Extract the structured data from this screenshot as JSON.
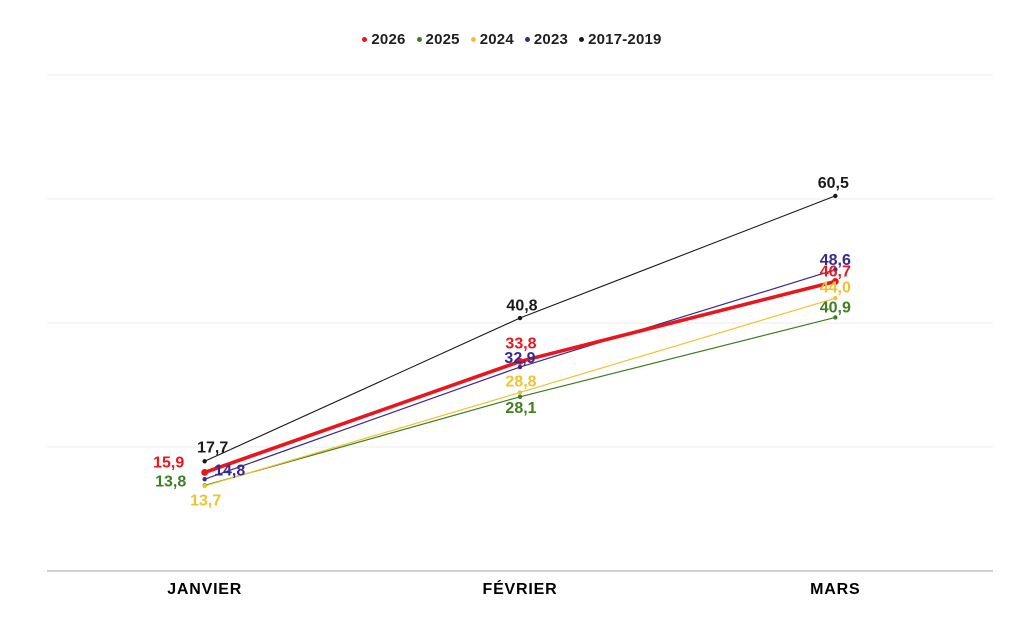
{
  "legend": {
    "order": [
      "2026",
      "2025",
      "2024",
      "2023",
      "2017-2019"
    ]
  },
  "chart_data": {
    "type": "line",
    "title": "",
    "categories": [
      "JANVIER",
      "FÉVRIER",
      "MARS"
    ],
    "ylim": [
      0,
      80
    ],
    "grid_step": 20,
    "grid_on": true,
    "legend_position": "top-center",
    "axis_color": "#b3b3b3",
    "grid_color": "#ebebeb",
    "series": [
      {
        "name": "2017-2019",
        "color": "#1a1a1a",
        "values": [
          17.7,
          40.8,
          60.5
        ],
        "value_labels": [
          "17,7",
          "40,8",
          "60,5"
        ],
        "line_width": 1.1,
        "dot_radius": 2.2,
        "label_offsets": [
          [
            8,
            -13
          ],
          [
            2,
            -12
          ],
          [
            -2,
            -12
          ]
        ]
      },
      {
        "name": "2025",
        "color": "#3f7e21",
        "values": [
          13.8,
          28.1,
          40.9
        ],
        "value_labels": [
          "13,8",
          "28,1",
          "40,9"
        ],
        "line_width": 1.2,
        "dot_radius": 2.2,
        "label_offsets": [
          [
            -34,
            -3
          ],
          [
            1,
            12
          ],
          [
            0,
            -9
          ]
        ]
      },
      {
        "name": "2024",
        "color": "#efc231",
        "values": [
          13.7,
          28.8,
          44.0
        ],
        "value_labels": [
          "13,7",
          "28,8",
          "44,0"
        ],
        "line_width": 1.2,
        "dot_radius": 2.2,
        "label_offsets": [
          [
            1,
            15
          ],
          [
            1,
            -10
          ],
          [
            0,
            -10
          ]
        ]
      },
      {
        "name": "2023",
        "color": "#372a8d",
        "values": [
          14.8,
          32.9,
          48.6
        ],
        "value_labels": [
          "14,8",
          "32,9",
          "48,6"
        ],
        "line_width": 1.2,
        "dot_radius": 2.2,
        "label_offsets": [
          [
            25,
            -8
          ],
          [
            0,
            -8
          ],
          [
            0,
            -9
          ]
        ]
      },
      {
        "name": "2026",
        "color": "#e8171d",
        "values": [
          15.9,
          33.8,
          46.7
        ],
        "value_labels": [
          "15,9",
          "33,8",
          "46,7"
        ],
        "line_width": 3.6,
        "dot_radius": 3.4,
        "label_offsets": [
          [
            -36,
            -9
          ],
          [
            1,
            -17
          ],
          [
            0,
            -9
          ]
        ]
      }
    ]
  }
}
